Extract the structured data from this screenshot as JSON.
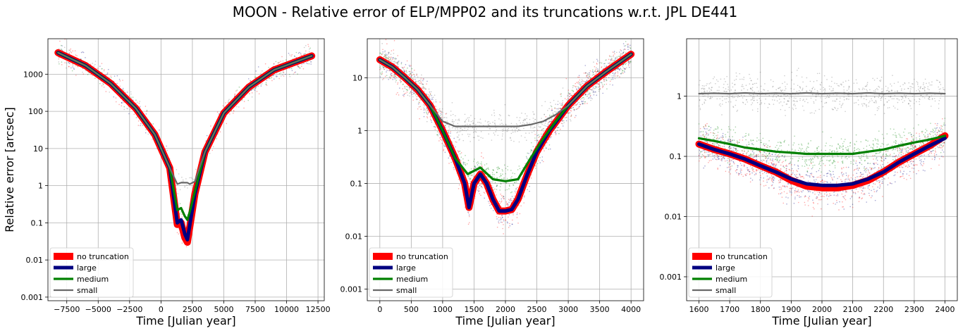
{
  "suptitle": "MOON - Relative error of ELP/MPP02 and its truncations w.r.t. JPL DE441",
  "colors": {
    "no_truncation": "#ff0000",
    "large": "#000080",
    "medium": "#008000",
    "small": "#696969"
  },
  "chart_data": [
    {
      "type": "line",
      "title": "",
      "xlabel": "Time [Julian year]",
      "ylabel": "Relative error [arcsec]",
      "yscale": "log",
      "grid": true,
      "legend_position": "lower-left",
      "xlim": [
        -9000,
        13000
      ],
      "ylim": [
        0.0008,
        9000
      ],
      "x_ticks": [
        -7500,
        -5000,
        -2500,
        0,
        2500,
        5000,
        7500,
        10000,
        12500
      ],
      "x_tick_labels": [
        "−7500",
        "−5000",
        "−2500",
        "0",
        "2500",
        "5000",
        "7500",
        "10000",
        "12500"
      ],
      "y_ticks": [
        0.001,
        0.01,
        0.1,
        1,
        10,
        100,
        1000
      ],
      "y_tick_labels": [
        "0.001",
        "0.01",
        "0.1",
        "1",
        "10",
        "100",
        "1000"
      ],
      "series": [
        {
          "name": "no truncation",
          "x": [
            -8200,
            -6000,
            -4000,
            -2000,
            -500,
            700,
            1300,
            1600,
            1900,
            2100,
            2300,
            2700,
            3500,
            5000,
            7000,
            9000,
            12000
          ],
          "y": [
            3800,
            1700,
            560,
            120,
            24,
            3,
            0.09,
            0.1,
            0.04,
            0.03,
            0.08,
            0.6,
            8,
            90,
            450,
            1300,
            3100
          ]
        },
        {
          "name": "large",
          "x": [
            -8200,
            -6000,
            -4000,
            -2000,
            -500,
            700,
            1300,
            1600,
            1900,
            2100,
            2300,
            2700,
            3500,
            5000,
            7000,
            9000,
            12000
          ],
          "y": [
            3800,
            1700,
            560,
            120,
            24,
            3,
            0.1,
            0.12,
            0.05,
            0.035,
            0.09,
            0.6,
            8,
            90,
            450,
            1300,
            3100
          ]
        },
        {
          "name": "medium",
          "x": [
            -8200,
            -6000,
            -4000,
            -2000,
            -500,
            700,
            1300,
            1600,
            1900,
            2100,
            2300,
            2700,
            3500,
            5000,
            7000,
            9000,
            12000
          ],
          "y": [
            3800,
            1700,
            560,
            120,
            24,
            3,
            0.22,
            0.25,
            0.15,
            0.12,
            0.2,
            0.7,
            8,
            90,
            450,
            1300,
            3100
          ]
        },
        {
          "name": "small",
          "x": [
            -8200,
            -6000,
            -4000,
            -2000,
            -500,
            700,
            1300,
            1600,
            1900,
            2100,
            2300,
            2700,
            3500,
            5000,
            7000,
            9000,
            12000
          ],
          "y": [
            3800,
            1700,
            560,
            120,
            24,
            3,
            1.1,
            1.2,
            1.2,
            1.2,
            1.1,
            1.3,
            8,
            90,
            450,
            1300,
            3100
          ]
        }
      ]
    },
    {
      "type": "line",
      "title": "",
      "xlabel": "Time [Julian year]",
      "ylabel": "",
      "yscale": "log",
      "grid": true,
      "legend_position": "lower-left",
      "xlim": [
        -200,
        4200
      ],
      "ylim": [
        0.0006,
        55
      ],
      "x_ticks": [
        0,
        500,
        1000,
        1500,
        2000,
        2500,
        3000,
        3500,
        4000
      ],
      "x_tick_labels": [
        "0",
        "500",
        "1000",
        "1500",
        "2000",
        "2500",
        "3000",
        "3500",
        "4000"
      ],
      "y_ticks": [
        0.001,
        0.01,
        0.1,
        1,
        10
      ],
      "y_tick_labels": [
        "0.001",
        "0.01",
        "0.1",
        "1",
        "10"
      ],
      "series": [
        {
          "name": "no truncation",
          "x": [
            0,
            200,
            400,
            600,
            800,
            1000,
            1200,
            1350,
            1420,
            1500,
            1600,
            1700,
            1800,
            1900,
            2000,
            2100,
            2200,
            2350,
            2500,
            2700,
            3000,
            3300,
            3600,
            4000
          ],
          "y": [
            22,
            16,
            10,
            6,
            3,
            1,
            0.3,
            0.1,
            0.035,
            0.1,
            0.15,
            0.1,
            0.05,
            0.03,
            0.03,
            0.032,
            0.05,
            0.15,
            0.4,
            1,
            3,
            7,
            13,
            28
          ]
        },
        {
          "name": "large",
          "x": [
            0,
            200,
            400,
            600,
            800,
            1000,
            1200,
            1350,
            1420,
            1500,
            1600,
            1700,
            1800,
            1900,
            2000,
            2100,
            2200,
            2350,
            2500,
            2700,
            3000,
            3300,
            3600,
            4000
          ],
          "y": [
            22,
            16,
            10,
            6,
            3,
            1,
            0.3,
            0.1,
            0.035,
            0.1,
            0.15,
            0.1,
            0.05,
            0.03,
            0.03,
            0.032,
            0.05,
            0.15,
            0.4,
            1,
            3,
            7,
            13,
            28
          ]
        },
        {
          "name": "medium",
          "x": [
            0,
            200,
            400,
            600,
            800,
            1000,
            1200,
            1400,
            1600,
            1800,
            2000,
            2200,
            2400,
            2600,
            2800,
            3000,
            3300,
            3600,
            4000
          ],
          "y": [
            22,
            16,
            10,
            6,
            3,
            1,
            0.3,
            0.15,
            0.2,
            0.12,
            0.11,
            0.12,
            0.3,
            0.7,
            1.5,
            3,
            7,
            13,
            28
          ]
        },
        {
          "name": "small",
          "x": [
            0,
            200,
            400,
            600,
            800,
            1000,
            1200,
            1400,
            1600,
            1800,
            2000,
            2200,
            2400,
            2600,
            2800,
            3000,
            3300,
            3600,
            4000
          ],
          "y": [
            22,
            16,
            10,
            6,
            3,
            1.5,
            1.2,
            1.2,
            1.2,
            1.2,
            1.2,
            1.2,
            1.3,
            1.5,
            2,
            3,
            7,
            13,
            28
          ]
        }
      ]
    },
    {
      "type": "line",
      "title": "",
      "xlabel": "Time [Julian year]",
      "ylabel": "",
      "yscale": "log",
      "grid": true,
      "legend_position": "lower-left",
      "xlim": [
        1560,
        2440
      ],
      "ylim": [
        0.0004,
        9
      ],
      "x_ticks": [
        1600,
        1700,
        1800,
        1900,
        2000,
        2100,
        2200,
        2300,
        2400
      ],
      "x_tick_labels": [
        "1600",
        "1700",
        "1800",
        "1900",
        "2000",
        "2100",
        "2200",
        "2300",
        "2400"
      ],
      "y_ticks": [
        0.001,
        0.01,
        0.1,
        1
      ],
      "y_tick_labels": [
        "0.001",
        "0.01",
        "0.1",
        "1"
      ],
      "series": [
        {
          "name": "no truncation",
          "x": [
            1600,
            1650,
            1700,
            1750,
            1800,
            1850,
            1900,
            1950,
            2000,
            2050,
            2100,
            2150,
            2200,
            2250,
            2300,
            2350,
            2400
          ],
          "y": [
            0.16,
            0.13,
            0.11,
            0.09,
            0.07,
            0.055,
            0.04,
            0.032,
            0.03,
            0.03,
            0.033,
            0.04,
            0.055,
            0.08,
            0.11,
            0.15,
            0.22
          ]
        },
        {
          "name": "large",
          "x": [
            1600,
            1650,
            1700,
            1750,
            1800,
            1850,
            1900,
            1950,
            2000,
            2050,
            2100,
            2150,
            2200,
            2250,
            2300,
            2350,
            2400
          ],
          "y": [
            0.16,
            0.13,
            0.11,
            0.09,
            0.07,
            0.055,
            0.042,
            0.035,
            0.033,
            0.033,
            0.035,
            0.042,
            0.055,
            0.08,
            0.11,
            0.15,
            0.2
          ]
        },
        {
          "name": "medium",
          "x": [
            1600,
            1650,
            1700,
            1750,
            1800,
            1850,
            1900,
            1950,
            2000,
            2050,
            2100,
            2150,
            2200,
            2250,
            2300,
            2350,
            2400
          ],
          "y": [
            0.2,
            0.18,
            0.16,
            0.14,
            0.13,
            0.12,
            0.115,
            0.11,
            0.11,
            0.11,
            0.11,
            0.12,
            0.13,
            0.15,
            0.17,
            0.19,
            0.22
          ]
        },
        {
          "name": "small",
          "x": [
            1600,
            1650,
            1700,
            1750,
            1800,
            1850,
            1900,
            1950,
            2000,
            2050,
            2100,
            2150,
            2200,
            2250,
            2300,
            2350,
            2400
          ],
          "y": [
            1.1,
            1.12,
            1.1,
            1.13,
            1.1,
            1.12,
            1.1,
            1.13,
            1.1,
            1.12,
            1.1,
            1.13,
            1.1,
            1.12,
            1.1,
            1.12,
            1.1
          ]
        }
      ]
    }
  ]
}
